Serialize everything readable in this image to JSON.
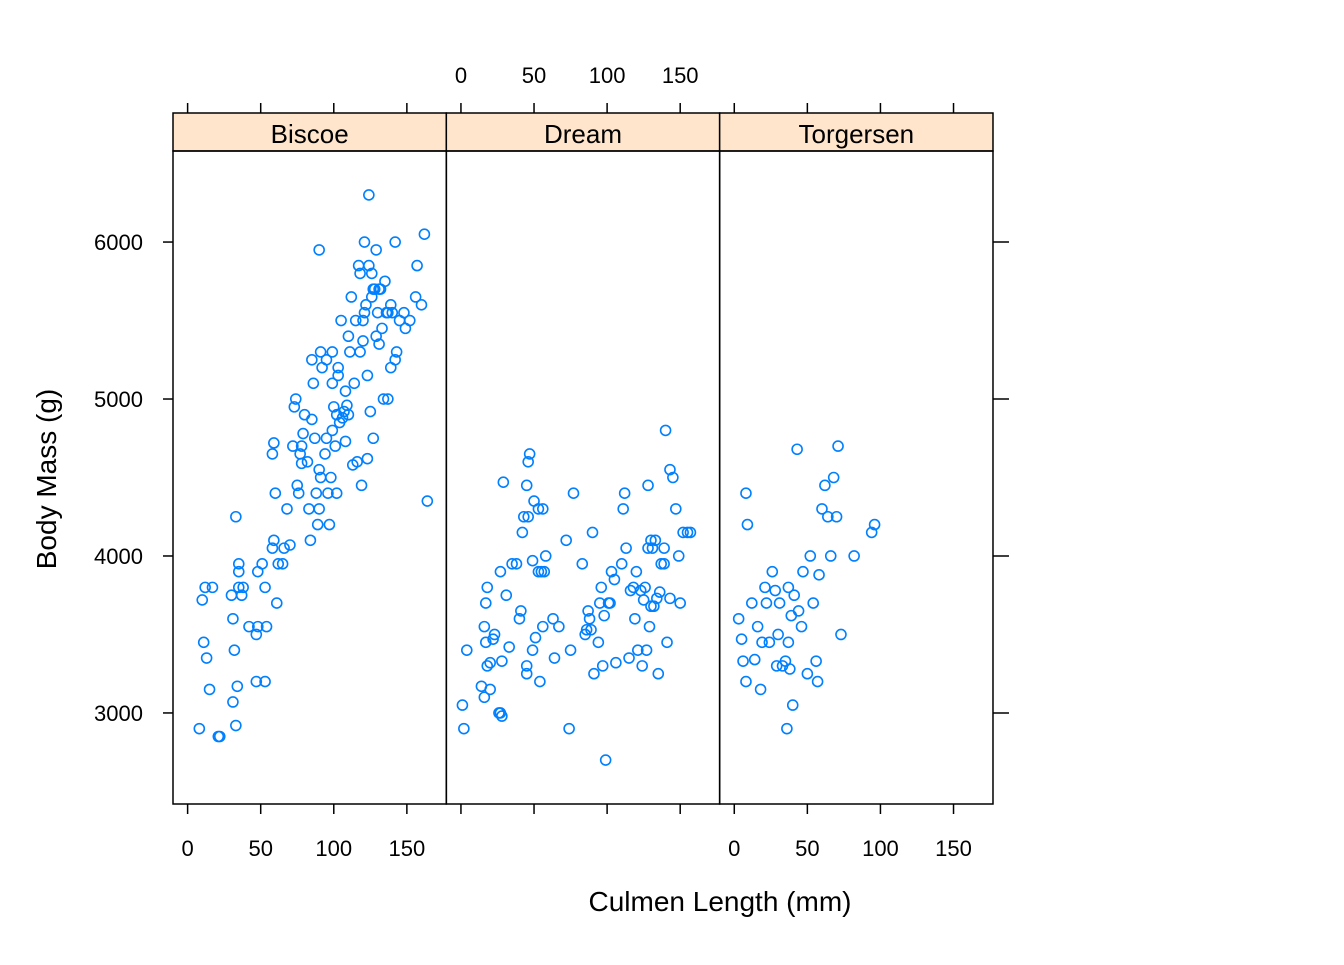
{
  "chart_data": {
    "type": "scatter",
    "xlabel": "Culmen Length (mm)",
    "ylabel": "Body Mass (g)",
    "xlim": [
      -10,
      177
    ],
    "ylim": [
      2420,
      6580
    ],
    "x_ticks": [
      0,
      50,
      100,
      150
    ],
    "y_ticks": [
      3000,
      4000,
      5000,
      6000
    ],
    "point_color": "#0080ff",
    "strip_color": "#ffe5cc",
    "panels": [
      {
        "name": "Biscoe",
        "points": [
          [
            8,
            2900
          ],
          [
            11,
            3450
          ],
          [
            13,
            3350
          ],
          [
            15,
            3150
          ],
          [
            10,
            3720
          ],
          [
            12,
            3800
          ],
          [
            17,
            3800
          ],
          [
            21,
            2850
          ],
          [
            22,
            2850
          ],
          [
            33,
            2920
          ],
          [
            31,
            3070
          ],
          [
            34,
            3170
          ],
          [
            32,
            3400
          ],
          [
            31,
            3600
          ],
          [
            30,
            3750
          ],
          [
            35,
            3800
          ],
          [
            35,
            3900
          ],
          [
            37,
            3750
          ],
          [
            38,
            3800
          ],
          [
            35,
            3950
          ],
          [
            33,
            4250
          ],
          [
            42,
            3550
          ],
          [
            47,
            3500
          ],
          [
            48,
            3550
          ],
          [
            47,
            3200
          ],
          [
            53,
            3200
          ],
          [
            54,
            3550
          ],
          [
            53,
            3800
          ],
          [
            48,
            3900
          ],
          [
            51,
            3950
          ],
          [
            58,
            4050
          ],
          [
            59,
            4100
          ],
          [
            58,
            4650
          ],
          [
            59,
            4720
          ],
          [
            61,
            3700
          ],
          [
            62,
            3950
          ],
          [
            60,
            4400
          ],
          [
            65,
            3950
          ],
          [
            66,
            4050
          ],
          [
            68,
            4300
          ],
          [
            70,
            4070
          ],
          [
            72,
            4700
          ],
          [
            73,
            4950
          ],
          [
            74,
            5000
          ],
          [
            75,
            4450
          ],
          [
            76,
            4400
          ],
          [
            77,
            4650
          ],
          [
            78,
            4700
          ],
          [
            78,
            4590
          ],
          [
            79,
            4780
          ],
          [
            80,
            4900
          ],
          [
            82,
            4600
          ],
          [
            83,
            4300
          ],
          [
            84,
            4100
          ],
          [
            85,
            4870
          ],
          [
            85,
            5250
          ],
          [
            86,
            5100
          ],
          [
            87,
            4750
          ],
          [
            88,
            4400
          ],
          [
            89,
            4200
          ],
          [
            90,
            4550
          ],
          [
            91,
            4500
          ],
          [
            90,
            4300
          ],
          [
            91,
            5300
          ],
          [
            92,
            5200
          ],
          [
            94,
            4650
          ],
          [
            95,
            4750
          ],
          [
            96,
            4400
          ],
          [
            97,
            4200
          ],
          [
            98,
            4500
          ],
          [
            99,
            5300
          ],
          [
            99,
            5100
          ],
          [
            99,
            4800
          ],
          [
            100,
            4950
          ],
          [
            101,
            4700
          ],
          [
            102,
            4400
          ],
          [
            102,
            4900
          ],
          [
            103,
            5150
          ],
          [
            103,
            5200
          ],
          [
            104,
            4850
          ],
          [
            105,
            5500
          ],
          [
            106,
            4880
          ],
          [
            107,
            4920
          ],
          [
            108,
            4730
          ],
          [
            108,
            5050
          ],
          [
            109,
            4960
          ],
          [
            110,
            4900
          ],
          [
            110,
            5400
          ],
          [
            111,
            5300
          ],
          [
            112,
            5650
          ],
          [
            113,
            4580
          ],
          [
            114,
            5100
          ],
          [
            115,
            5500
          ],
          [
            116,
            4600
          ],
          [
            117,
            5850
          ],
          [
            118,
            5300
          ],
          [
            118,
            5800
          ],
          [
            119,
            4450
          ],
          [
            120,
            5370
          ],
          [
            120,
            5500
          ],
          [
            121,
            5550
          ],
          [
            121,
            6000
          ],
          [
            122,
            5600
          ],
          [
            123,
            4620
          ],
          [
            123,
            5150
          ],
          [
            124,
            5850
          ],
          [
            124,
            6300
          ],
          [
            125,
            4920
          ],
          [
            126,
            5650
          ],
          [
            126,
            5800
          ],
          [
            127,
            5700
          ],
          [
            127,
            4750
          ],
          [
            128,
            5700
          ],
          [
            129,
            5400
          ],
          [
            129,
            5950
          ],
          [
            130,
            5550
          ],
          [
            131,
            5700
          ],
          [
            131,
            5350
          ],
          [
            132,
            5700
          ],
          [
            133,
            5450
          ],
          [
            134,
            5000
          ],
          [
            135,
            5750
          ],
          [
            136,
            5550
          ],
          [
            137,
            5550
          ],
          [
            137,
            5000
          ],
          [
            139,
            5200
          ],
          [
            139,
            5600
          ],
          [
            140,
            5550
          ],
          [
            142,
            5250
          ],
          [
            142,
            6000
          ],
          [
            143,
            5300
          ],
          [
            145,
            5500
          ],
          [
            148,
            5550
          ],
          [
            149,
            5450
          ],
          [
            152,
            5500
          ],
          [
            156,
            5650
          ],
          [
            157,
            5850
          ],
          [
            160,
            5600
          ],
          [
            162,
            6050
          ],
          [
            164,
            4350
          ],
          [
            90,
            5950
          ],
          [
            95,
            5250
          ]
        ]
      },
      {
        "name": "Dream",
        "points": [
          [
            1,
            3050
          ],
          [
            2,
            2900
          ],
          [
            4,
            3400
          ],
          [
            14,
            3170
          ],
          [
            16,
            3100
          ],
          [
            16,
            3550
          ],
          [
            17,
            3700
          ],
          [
            18,
            3800
          ],
          [
            17,
            3450
          ],
          [
            18,
            3300
          ],
          [
            20,
            3320
          ],
          [
            20,
            3150
          ],
          [
            22,
            3470
          ],
          [
            23,
            3500
          ],
          [
            26,
            3000
          ],
          [
            27,
            3000
          ],
          [
            28,
            2980
          ],
          [
            27,
            3900
          ],
          [
            28,
            3330
          ],
          [
            29,
            4470
          ],
          [
            31,
            3750
          ],
          [
            33,
            3420
          ],
          [
            35,
            3950
          ],
          [
            38,
            3950
          ],
          [
            40,
            3600
          ],
          [
            41,
            3650
          ],
          [
            42,
            4150
          ],
          [
            43,
            4250
          ],
          [
            45,
            3300
          ],
          [
            45,
            3250
          ],
          [
            45,
            4450
          ],
          [
            46,
            4250
          ],
          [
            46,
            4600
          ],
          [
            47,
            4650
          ],
          [
            49,
            3400
          ],
          [
            49,
            3970
          ],
          [
            50,
            4350
          ],
          [
            51,
            3480
          ],
          [
            53,
            3900
          ],
          [
            53,
            4300
          ],
          [
            54,
            3200
          ],
          [
            55,
            3900
          ],
          [
            56,
            3550
          ],
          [
            56,
            4300
          ],
          [
            57,
            3900
          ],
          [
            58,
            4000
          ],
          [
            63,
            3600
          ],
          [
            64,
            3350
          ],
          [
            67,
            3550
          ],
          [
            72,
            4100
          ],
          [
            74,
            2900
          ],
          [
            75,
            3400
          ],
          [
            77,
            4400
          ],
          [
            83,
            3950
          ],
          [
            85,
            3500
          ],
          [
            86,
            3530
          ],
          [
            87,
            3650
          ],
          [
            88,
            3600
          ],
          [
            89,
            3530
          ],
          [
            90,
            4150
          ],
          [
            91,
            3250
          ],
          [
            94,
            3450
          ],
          [
            95,
            3700
          ],
          [
            96,
            3800
          ],
          [
            97,
            3300
          ],
          [
            98,
            3620
          ],
          [
            99,
            2700
          ],
          [
            101,
            3700
          ],
          [
            102,
            3700
          ],
          [
            103,
            3900
          ],
          [
            105,
            3850
          ],
          [
            106,
            3320
          ],
          [
            110,
            3950
          ],
          [
            111,
            4300
          ],
          [
            112,
            4400
          ],
          [
            113,
            4050
          ],
          [
            115,
            3350
          ],
          [
            116,
            3780
          ],
          [
            118,
            3800
          ],
          [
            119,
            3600
          ],
          [
            120,
            3900
          ],
          [
            121,
            3400
          ],
          [
            123,
            3780
          ],
          [
            124,
            3300
          ],
          [
            125,
            3720
          ],
          [
            126,
            3800
          ],
          [
            127,
            3400
          ],
          [
            128,
            4050
          ],
          [
            128,
            4450
          ],
          [
            129,
            3550
          ],
          [
            130,
            4100
          ],
          [
            130,
            3680
          ],
          [
            131,
            4050
          ],
          [
            132,
            3680
          ],
          [
            133,
            4100
          ],
          [
            134,
            3730
          ],
          [
            135,
            3250
          ],
          [
            136,
            3770
          ],
          [
            137,
            3950
          ],
          [
            139,
            3950
          ],
          [
            139,
            4050
          ],
          [
            140,
            4800
          ],
          [
            141,
            3450
          ],
          [
            143,
            4550
          ],
          [
            143,
            3730
          ],
          [
            145,
            4500
          ],
          [
            147,
            4300
          ],
          [
            149,
            4000
          ],
          [
            150,
            3700
          ],
          [
            152,
            4150
          ],
          [
            155,
            4150
          ],
          [
            157,
            4150
          ]
        ]
      },
      {
        "name": "Torgersen",
        "points": [
          [
            3,
            3600
          ],
          [
            5,
            3470
          ],
          [
            6,
            3330
          ],
          [
            8,
            3200
          ],
          [
            8,
            4400
          ],
          [
            9,
            4200
          ],
          [
            12,
            3700
          ],
          [
            14,
            3340
          ],
          [
            16,
            3550
          ],
          [
            18,
            3150
          ],
          [
            19,
            3450
          ],
          [
            21,
            3800
          ],
          [
            22,
            3700
          ],
          [
            24,
            3450
          ],
          [
            26,
            3900
          ],
          [
            28,
            3780
          ],
          [
            29,
            3300
          ],
          [
            30,
            3500
          ],
          [
            31,
            3700
          ],
          [
            33,
            3300
          ],
          [
            35,
            3330
          ],
          [
            36,
            2900
          ],
          [
            37,
            3800
          ],
          [
            37,
            3450
          ],
          [
            38,
            3280
          ],
          [
            39,
            3620
          ],
          [
            40,
            3050
          ],
          [
            41,
            3750
          ],
          [
            43,
            4680
          ],
          [
            44,
            3650
          ],
          [
            46,
            3550
          ],
          [
            47,
            3900
          ],
          [
            50,
            3250
          ],
          [
            52,
            4000
          ],
          [
            54,
            3700
          ],
          [
            56,
            3330
          ],
          [
            57,
            3200
          ],
          [
            58,
            3880
          ],
          [
            60,
            4300
          ],
          [
            62,
            4450
          ],
          [
            64,
            4250
          ],
          [
            66,
            4000
          ],
          [
            68,
            4500
          ],
          [
            70,
            4250
          ],
          [
            71,
            4700
          ],
          [
            73,
            3500
          ],
          [
            82,
            4000
          ],
          [
            94,
            4150
          ],
          [
            96,
            4200
          ]
        ]
      }
    ]
  }
}
